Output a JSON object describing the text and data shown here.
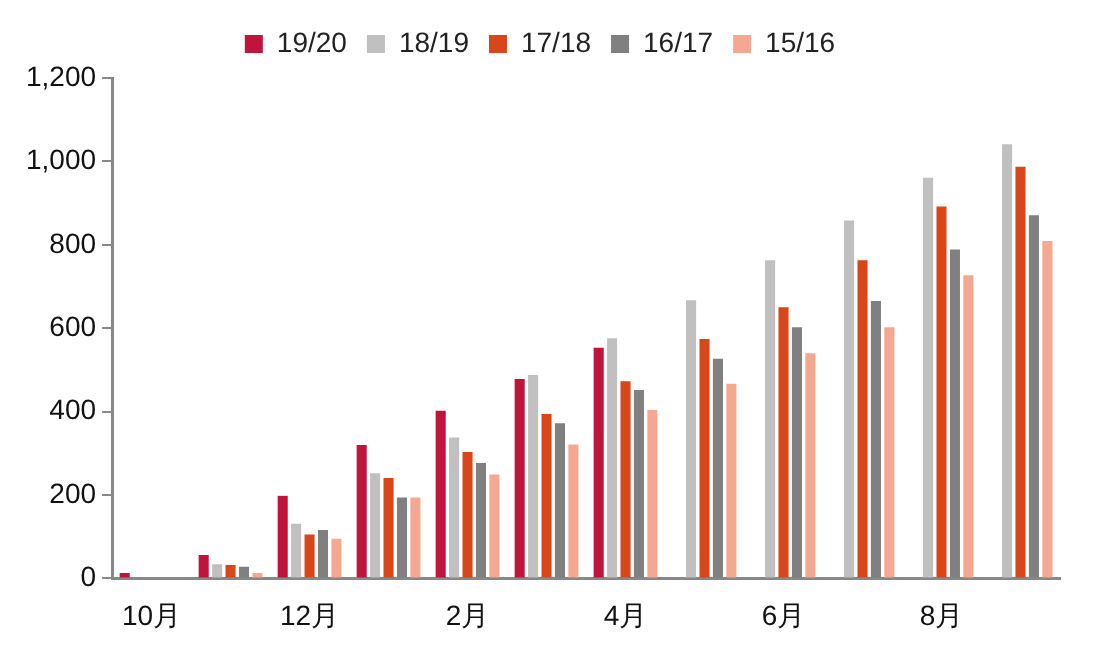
{
  "chart_data": {
    "type": "bar",
    "categories": [
      "10月",
      null,
      "12月",
      null,
      "2月",
      null,
      "4月",
      null,
      "6月",
      null,
      "8月",
      null
    ],
    "series": [
      {
        "name": "19/20",
        "color": "#c0143c",
        "values": [
          13,
          56,
          198,
          320,
          402,
          478,
          553,
          null,
          null,
          null,
          null,
          null
        ]
      },
      {
        "name": "18/19",
        "color": "#c0c0c0",
        "values": [
          null,
          34,
          131,
          252,
          338,
          488,
          576,
          667,
          763,
          858,
          961,
          1041
        ]
      },
      {
        "name": "17/18",
        "color": "#d9461a",
        "values": [
          null,
          32,
          105,
          241,
          303,
          394,
          473,
          574,
          650,
          763,
          892,
          987
        ]
      },
      {
        "name": "16/17",
        "color": "#808080",
        "values": [
          null,
          28,
          116,
          194,
          277,
          372,
          452,
          527,
          602,
          665,
          789,
          871
        ]
      },
      {
        "name": "15/16",
        "color": "#f4a890",
        "values": [
          null,
          13,
          95,
          194,
          249,
          321,
          404,
          467,
          540,
          602,
          727,
          809
        ]
      }
    ],
    "ylim": [
      0,
      1200
    ],
    "yticks": [
      {
        "value": 0,
        "label": "0"
      },
      {
        "value": 200,
        "label": "200"
      },
      {
        "value": 400,
        "label": "400"
      },
      {
        "value": 600,
        "label": "600"
      },
      {
        "value": 800,
        "label": "800"
      },
      {
        "value": 1000,
        "label": "1,000"
      },
      {
        "value": 1200,
        "label": "1,200"
      }
    ],
    "grid": false,
    "legend": "top"
  }
}
